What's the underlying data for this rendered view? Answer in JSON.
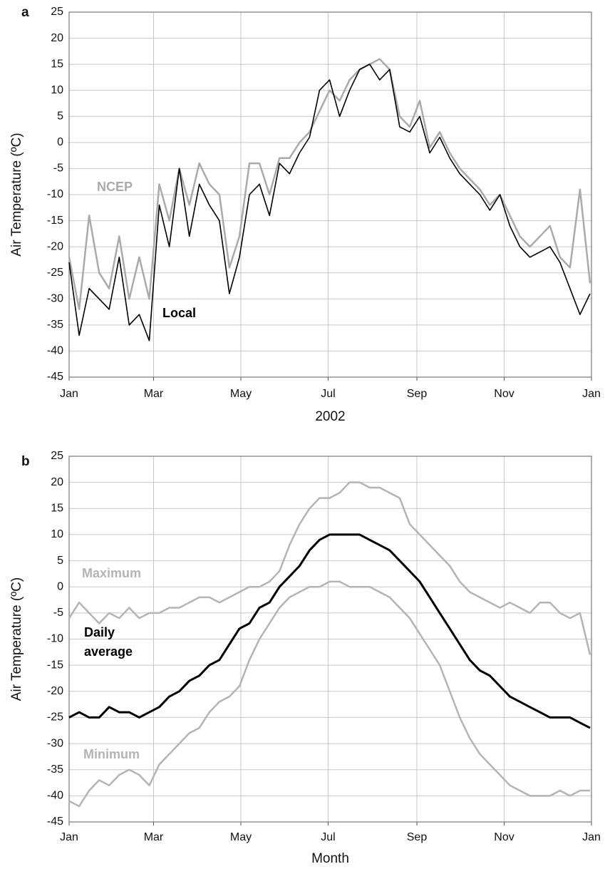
{
  "chart_data": [
    {
      "type": "line",
      "panel_label": "a",
      "ylabel": "Air Temperature (ºC)",
      "xlabel": "2002",
      "xlim": [
        0,
        365
      ],
      "ylim": [
        -45,
        25
      ],
      "xticks": [
        {
          "value": 0,
          "label": "Jan"
        },
        {
          "value": 59,
          "label": "Mar"
        },
        {
          "value": 120,
          "label": "May"
        },
        {
          "value": 181,
          "label": "Jul"
        },
        {
          "value": 243,
          "label": "Sep"
        },
        {
          "value": 304,
          "label": "Nov"
        },
        {
          "value": 365,
          "label": "Jan"
        }
      ],
      "yticks": [
        -45,
        -40,
        -35,
        -30,
        -25,
        -20,
        -15,
        -10,
        -5,
        0,
        5,
        10,
        15,
        20,
        25
      ],
      "grid": true,
      "x": [
        0,
        7,
        14,
        21,
        28,
        35,
        42,
        49,
        56,
        63,
        70,
        77,
        84,
        91,
        98,
        105,
        112,
        119,
        126,
        133,
        140,
        147,
        154,
        161,
        168,
        175,
        182,
        189,
        196,
        203,
        210,
        217,
        224,
        231,
        238,
        245,
        252,
        259,
        266,
        273,
        280,
        287,
        294,
        301,
        308,
        315,
        322,
        329,
        336,
        343,
        350,
        357,
        364
      ],
      "series": [
        {
          "name": "NCEP",
          "color": "#aaaaaa",
          "linewidth": 2.5,
          "values": [
            -22,
            -32,
            -14,
            -25,
            -28,
            -18,
            -30,
            -22,
            -30,
            -8,
            -15,
            -5,
            -12,
            -4,
            -8,
            -10,
            -24,
            -18,
            -4,
            -4,
            -10,
            -3,
            -3,
            0,
            2,
            6,
            10,
            8,
            12,
            14,
            15,
            16,
            14,
            5,
            3,
            8,
            -1,
            2,
            -2,
            -5,
            -7,
            -9,
            -12,
            -10,
            -14,
            -18,
            -20,
            -18,
            -16,
            -22,
            -24,
            -9,
            -27
          ]
        },
        {
          "name": "Local",
          "color": "#000000",
          "linewidth": 1.6,
          "values": [
            -23,
            -37,
            -28,
            -30,
            -32,
            -22,
            -35,
            -33,
            -38,
            -12,
            -20,
            -5,
            -18,
            -8,
            -12,
            -15,
            -29,
            -22,
            -10,
            -8,
            -14,
            -4,
            -6,
            -2,
            1,
            10,
            12,
            5,
            10,
            14,
            15,
            12,
            14,
            3,
            2,
            5,
            -2,
            1,
            -3,
            -6,
            -8,
            -10,
            -13,
            -10,
            -16,
            -20,
            -22,
            -21,
            -20,
            -23,
            -28,
            -33,
            -29
          ]
        }
      ]
    },
    {
      "type": "line",
      "panel_label": "b",
      "ylabel": "Air Temperature (ºC)",
      "xlabel": "Month",
      "xlim": [
        0,
        365
      ],
      "ylim": [
        -45,
        25
      ],
      "xticks": [
        {
          "value": 0,
          "label": "Jan"
        },
        {
          "value": 59,
          "label": "Mar"
        },
        {
          "value": 120,
          "label": "May"
        },
        {
          "value": 181,
          "label": "Jul"
        },
        {
          "value": 243,
          "label": "Sep"
        },
        {
          "value": 304,
          "label": "Nov"
        },
        {
          "value": 365,
          "label": "Jan"
        }
      ],
      "yticks": [
        -45,
        -40,
        -35,
        -30,
        -25,
        -20,
        -15,
        -10,
        -5,
        0,
        5,
        10,
        15,
        20,
        25
      ],
      "grid": true,
      "x": [
        0,
        7,
        14,
        21,
        28,
        35,
        42,
        49,
        56,
        63,
        70,
        77,
        84,
        91,
        98,
        105,
        112,
        119,
        126,
        133,
        140,
        147,
        154,
        161,
        168,
        175,
        182,
        189,
        196,
        203,
        210,
        217,
        224,
        231,
        238,
        245,
        252,
        259,
        266,
        273,
        280,
        287,
        294,
        301,
        308,
        315,
        322,
        329,
        336,
        343,
        350,
        357,
        364
      ],
      "series": [
        {
          "name": "Maximum",
          "color": "#b4b4b4",
          "linewidth": 2.5,
          "values": [
            -6,
            -3,
            -5,
            -7,
            -5,
            -6,
            -4,
            -6,
            -5,
            -5,
            -4,
            -4,
            -3,
            -2,
            -2,
            -3,
            -2,
            -1,
            0,
            0,
            1,
            3,
            8,
            12,
            15,
            17,
            17,
            18,
            20,
            20,
            19,
            19,
            18,
            17,
            12,
            10,
            8,
            6,
            4,
            1,
            -1,
            -2,
            -3,
            -4,
            -3,
            -4,
            -5,
            -3,
            -3,
            -5,
            -6,
            -5,
            -13
          ]
        },
        {
          "name": "Daily average",
          "color": "#000000",
          "linewidth": 3,
          "values": [
            -25,
            -24,
            -25,
            -25,
            -23,
            -24,
            -24,
            -25,
            -24,
            -23,
            -21,
            -20,
            -18,
            -17,
            -15,
            -14,
            -11,
            -8,
            -7,
            -4,
            -3,
            0,
            2,
            4,
            7,
            9,
            10,
            10,
            10,
            10,
            9,
            8,
            7,
            5,
            3,
            1,
            -2,
            -5,
            -8,
            -11,
            -14,
            -16,
            -17,
            -19,
            -21,
            -22,
            -23,
            -24,
            -25,
            -25,
            -25,
            -26,
            -27
          ]
        },
        {
          "name": "Minimum",
          "color": "#b4b4b4",
          "linewidth": 2.5,
          "values": [
            -41,
            -42,
            -39,
            -37,
            -38,
            -36,
            -35,
            -36,
            -38,
            -34,
            -32,
            -30,
            -28,
            -27,
            -24,
            -22,
            -21,
            -19,
            -14,
            -10,
            -7,
            -4,
            -2,
            -1,
            0,
            0,
            1,
            1,
            0,
            0,
            0,
            -1,
            -2,
            -4,
            -6,
            -9,
            -12,
            -15,
            -20,
            -25,
            -29,
            -32,
            -34,
            -36,
            -38,
            -39,
            -40,
            -40,
            -40,
            -39,
            -40,
            -39,
            -39
          ]
        }
      ]
    }
  ]
}
